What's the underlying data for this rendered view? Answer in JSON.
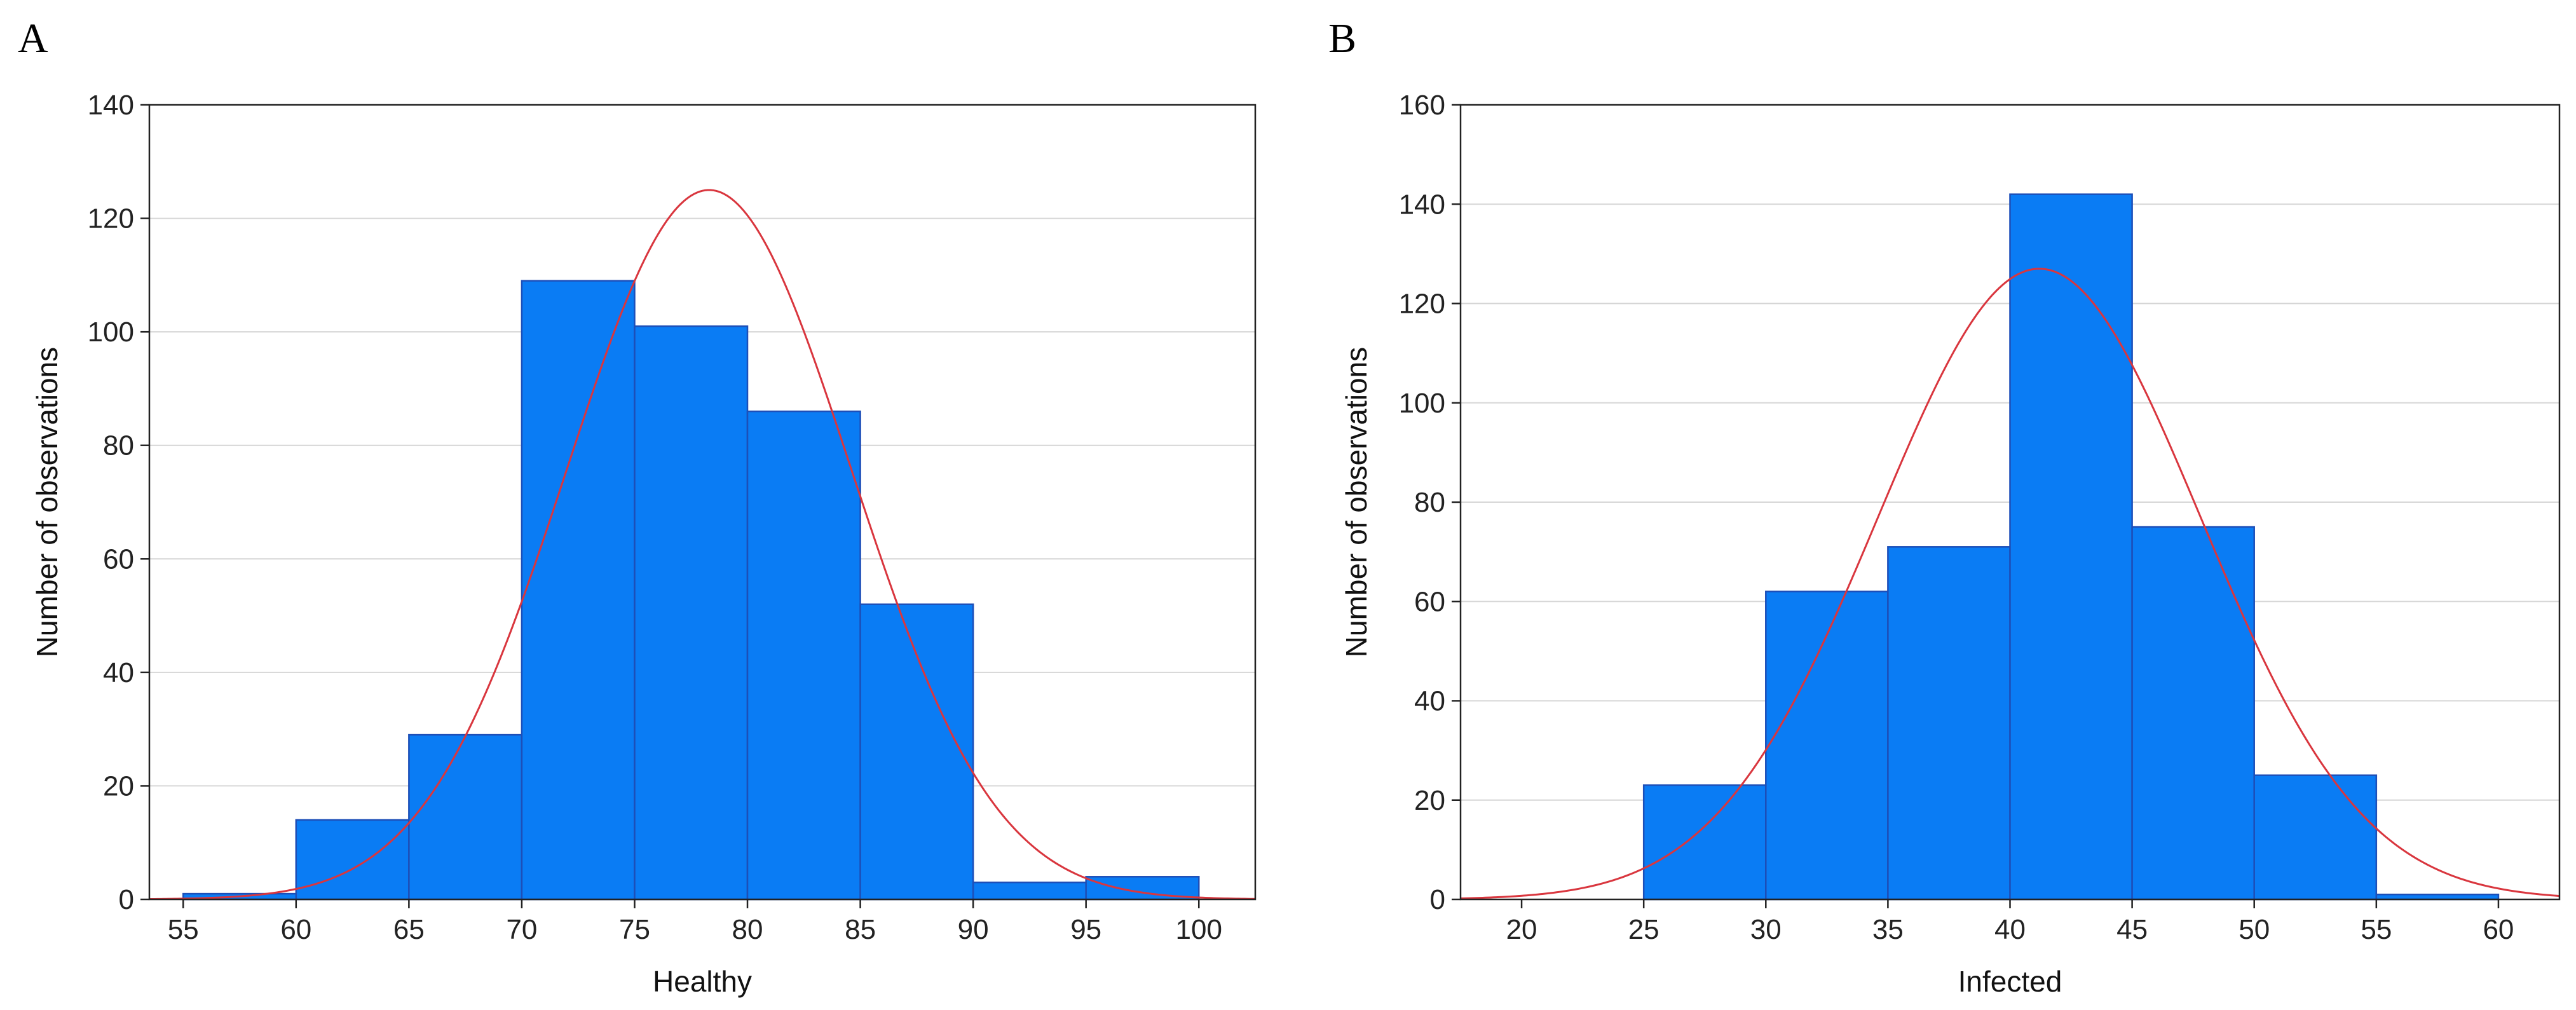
{
  "chart_data": [
    {
      "type": "bar",
      "panel_label": "A",
      "title": "",
      "xlabel": "Healthy",
      "ylabel": "Number of observations",
      "xlim": [
        53.5,
        102.5
      ],
      "ylim": [
        0,
        140
      ],
      "xticks": [
        55,
        60,
        65,
        70,
        75,
        80,
        85,
        90,
        95,
        100
      ],
      "yticks": [
        0,
        20,
        40,
        60,
        80,
        100,
        120,
        140
      ],
      "grid": true,
      "bins": [
        {
          "start": 55,
          "end": 60,
          "value": 1
        },
        {
          "start": 60,
          "end": 65,
          "value": 14
        },
        {
          "start": 65,
          "end": 70,
          "value": 29
        },
        {
          "start": 70,
          "end": 75,
          "value": 109
        },
        {
          "start": 75,
          "end": 80,
          "value": 101
        },
        {
          "start": 80,
          "end": 85,
          "value": 86
        },
        {
          "start": 85,
          "end": 90,
          "value": 52
        },
        {
          "start": 90,
          "end": 95,
          "value": 3
        },
        {
          "start": 95,
          "end": 100,
          "value": 4
        }
      ],
      "normal_fit": {
        "mean": 78.3,
        "sd": 6.3,
        "peak": 125
      }
    },
    {
      "type": "bar",
      "panel_label": "B",
      "title": "",
      "xlabel": "Infected",
      "ylabel": "Number of observations",
      "xlim": [
        17.5,
        62.5
      ],
      "ylim": [
        0,
        160
      ],
      "xticks": [
        20,
        25,
        30,
        35,
        40,
        45,
        50,
        55,
        60
      ],
      "yticks": [
        0,
        20,
        40,
        60,
        80,
        100,
        120,
        140,
        160
      ],
      "grid": true,
      "bins": [
        {
          "start": 25,
          "end": 30,
          "value": 23
        },
        {
          "start": 30,
          "end": 35,
          "value": 62
        },
        {
          "start": 35,
          "end": 40,
          "value": 71
        },
        {
          "start": 40,
          "end": 45,
          "value": 142
        },
        {
          "start": 45,
          "end": 50,
          "value": 75
        },
        {
          "start": 50,
          "end": 55,
          "value": 25
        },
        {
          "start": 55,
          "end": 60,
          "value": 1
        }
      ],
      "normal_fit": {
        "mean": 41.2,
        "sd": 6.6,
        "peak": 127
      }
    }
  ],
  "colors": {
    "bar_fill": "#0a7cf4",
    "bar_edge": "#1d4fb8",
    "curve": "#d9363e",
    "grid": "#d6d6d6",
    "frame": "#222222"
  }
}
